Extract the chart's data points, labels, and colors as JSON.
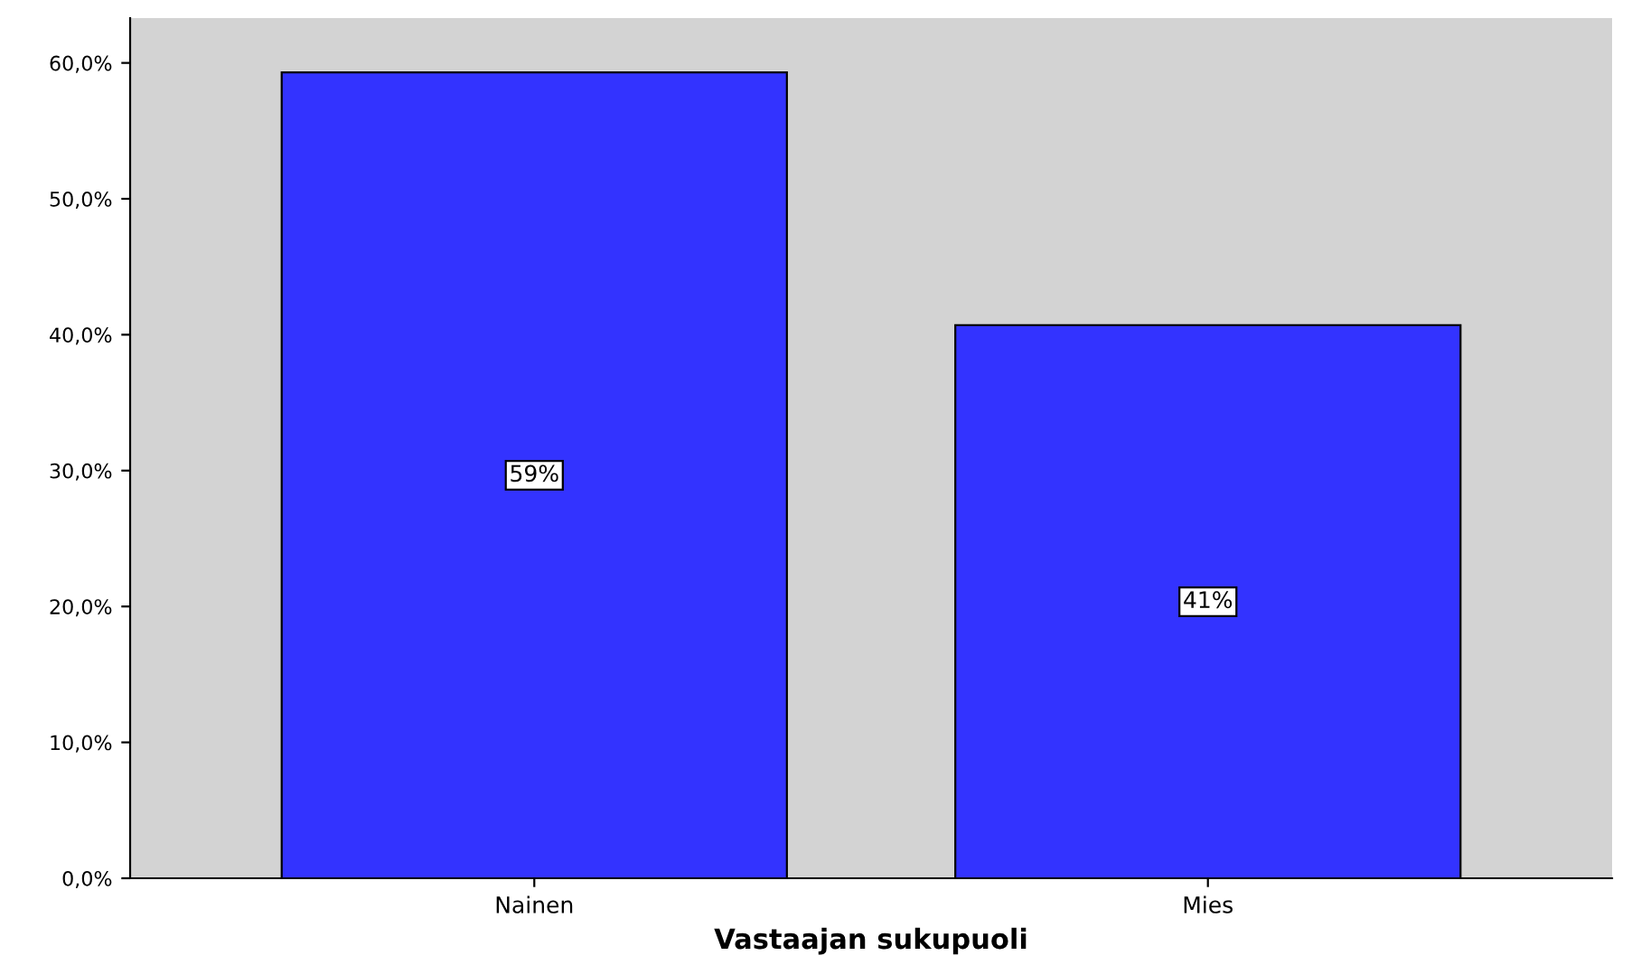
{
  "chart_data": {
    "type": "bar",
    "xlabel": "Vastaajan sukupuoli",
    "categories": [
      "Nainen",
      "Mies"
    ],
    "values": [
      59.3,
      40.7
    ],
    "value_labels": [
      "59%",
      "41%"
    ],
    "color": "#3333ff",
    "ylim": [
      0,
      63.3
    ],
    "yticks": [
      {
        "value": 0,
        "label": "0,0%"
      },
      {
        "value": 10,
        "label": "10,0%"
      },
      {
        "value": 20,
        "label": "20,0%"
      },
      {
        "value": 30,
        "label": "30,0%"
      },
      {
        "value": 40,
        "label": "40,0%"
      },
      {
        "value": 50,
        "label": "50,0%"
      },
      {
        "value": 60,
        "label": "60,0%"
      }
    ],
    "grid": false,
    "legend": false
  }
}
